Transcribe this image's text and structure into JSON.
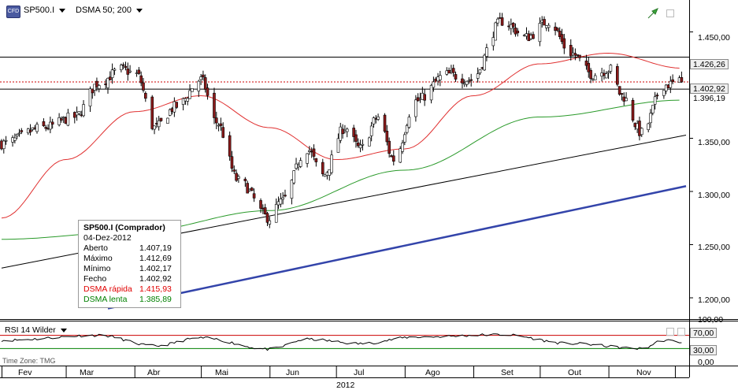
{
  "header": {
    "symbol": "SP500.I",
    "indicator": "DSMA 50; 200",
    "symbol_icon": "cfd-symbol-icon",
    "trend_icon": "green-arrow-up-icon"
  },
  "infobox": {
    "title": "SP500.I (Comprador)",
    "date": "04-Dez-2012",
    "rows": [
      {
        "label": "Aberto",
        "value": "1.407,19"
      },
      {
        "label": "Máximo",
        "value": "1.412,69"
      },
      {
        "label": "Mínimo",
        "value": "1.402,17"
      },
      {
        "label": "Fecho",
        "value": "1.402,92"
      },
      {
        "label": "DSMA rápida",
        "value": "1.415,93"
      },
      {
        "label": "DSMA lenta",
        "value": "1.385,89"
      }
    ]
  },
  "rsi": {
    "label": "RSI 14 Wilder",
    "upper": 70,
    "lower": 30,
    "tick_labels": [
      "100,00",
      "70,00",
      "30,00",
      "0,00"
    ]
  },
  "timezone": "Time Zone: TMG",
  "price_axis": {
    "ticks": [
      "1.450,00",
      "1.350,00",
      "1.300,00",
      "1.250,00",
      "1.200,00"
    ],
    "tick_values": [
      1450,
      1350,
      1300,
      1250,
      1200
    ],
    "last_price_label": "1.402,92",
    "level_label": "1.426,26",
    "hidden_label": "1.396,19"
  },
  "time_axis": {
    "months": [
      "Fev",
      "Mar",
      "Abr",
      "Mai",
      "Jun",
      "Jul",
      "Ago",
      "Set",
      "Out",
      "Nov"
    ],
    "year": "2012"
  },
  "colors": {
    "bull": "#ffffff",
    "bear": "#8b1a1a",
    "fast_ma": "#e03030",
    "slow_ma": "#2a9a2a",
    "trend_blue": "#3344aa",
    "trend_black": "#000000",
    "rsi_line": "#000000",
    "rsi_upper": "#cc0000",
    "rsi_lower": "#008000"
  },
  "chart_data": {
    "type": "candlestick",
    "title": "SP500.I",
    "period": "Fev–Dez 2012",
    "ylim": [
      1180,
      1480
    ],
    "price_levels": [
      1426.26,
      1396.19
    ],
    "last_close": 1402.92,
    "anchors": [
      {
        "date": "2012-02-01",
        "close": 1345
      },
      {
        "date": "2012-02-20",
        "close": 1360
      },
      {
        "date": "2012-03-05",
        "close": 1370
      },
      {
        "date": "2012-03-16",
        "close": 1402
      },
      {
        "date": "2012-03-26",
        "close": 1415
      },
      {
        "date": "2012-04-02",
        "close": 1410
      },
      {
        "date": "2012-04-10",
        "close": 1360
      },
      {
        "date": "2012-04-20",
        "close": 1380
      },
      {
        "date": "2012-05-01",
        "close": 1405
      },
      {
        "date": "2012-05-08",
        "close": 1365
      },
      {
        "date": "2012-05-18",
        "close": 1310
      },
      {
        "date": "2012-06-01",
        "close": 1275
      },
      {
        "date": "2012-06-06",
        "close": 1290
      },
      {
        "date": "2012-06-18",
        "close": 1340
      },
      {
        "date": "2012-06-25",
        "close": 1315
      },
      {
        "date": "2012-07-05",
        "close": 1360
      },
      {
        "date": "2012-07-12",
        "close": 1340
      },
      {
        "date": "2012-07-20",
        "close": 1370
      },
      {
        "date": "2012-07-27",
        "close": 1330
      },
      {
        "date": "2012-08-06",
        "close": 1385
      },
      {
        "date": "2012-08-20",
        "close": 1410
      },
      {
        "date": "2012-08-31",
        "close": 1405
      },
      {
        "date": "2012-09-14",
        "close": 1460
      },
      {
        "date": "2012-09-25",
        "close": 1445
      },
      {
        "date": "2012-10-05",
        "close": 1460
      },
      {
        "date": "2012-10-15",
        "close": 1430
      },
      {
        "date": "2012-10-25",
        "close": 1410
      },
      {
        "date": "2012-11-02",
        "close": 1415
      },
      {
        "date": "2012-11-07",
        "close": 1390
      },
      {
        "date": "2012-11-16",
        "close": 1355
      },
      {
        "date": "2012-11-26",
        "close": 1400
      },
      {
        "date": "2012-12-04",
        "close": 1402.92
      }
    ],
    "fast_ma_anchors": [
      {
        "date": "2012-02-01",
        "value": 1275
      },
      {
        "date": "2012-03-01",
        "value": 1330
      },
      {
        "date": "2012-04-01",
        "value": 1375
      },
      {
        "date": "2012-05-01",
        "value": 1390
      },
      {
        "date": "2012-06-01",
        "value": 1360
      },
      {
        "date": "2012-07-01",
        "value": 1330
      },
      {
        "date": "2012-08-01",
        "value": 1340
      },
      {
        "date": "2012-09-01",
        "value": 1390
      },
      {
        "date": "2012-10-01",
        "value": 1420
      },
      {
        "date": "2012-11-01",
        "value": 1430
      },
      {
        "date": "2012-12-04",
        "value": 1415.93
      }
    ],
    "slow_ma_anchors": [
      {
        "date": "2012-02-01",
        "value": 1255
      },
      {
        "date": "2012-04-01",
        "value": 1262
      },
      {
        "date": "2012-06-01",
        "value": 1282
      },
      {
        "date": "2012-08-01",
        "value": 1320
      },
      {
        "date": "2012-10-01",
        "value": 1370
      },
      {
        "date": "2012-12-04",
        "value": 1385.89
      }
    ],
    "trendlines": [
      {
        "name": "black",
        "from": {
          "date": "2012-02-01",
          "value": 1228
        },
        "to": {
          "date": "2012-12-06",
          "value": 1353
        }
      },
      {
        "name": "blue",
        "from": {
          "date": "2012-03-20",
          "value": 1190
        },
        "to": {
          "date": "2012-12-06",
          "value": 1305
        }
      }
    ],
    "rsi": {
      "ylim": [
        0,
        100
      ],
      "upper": 70,
      "lower": 30,
      "anchors": [
        {
          "date": "2012-02-01",
          "value": 55
        },
        {
          "date": "2012-03-16",
          "value": 70
        },
        {
          "date": "2012-04-10",
          "value": 38
        },
        {
          "date": "2012-05-01",
          "value": 62
        },
        {
          "date": "2012-06-01",
          "value": 28
        },
        {
          "date": "2012-06-18",
          "value": 58
        },
        {
          "date": "2012-07-12",
          "value": 45
        },
        {
          "date": "2012-08-06",
          "value": 65
        },
        {
          "date": "2012-09-14",
          "value": 72
        },
        {
          "date": "2012-10-15",
          "value": 45
        },
        {
          "date": "2012-11-16",
          "value": 30
        },
        {
          "date": "2012-11-26",
          "value": 55
        },
        {
          "date": "2012-12-04",
          "value": 50
        }
      ]
    }
  }
}
